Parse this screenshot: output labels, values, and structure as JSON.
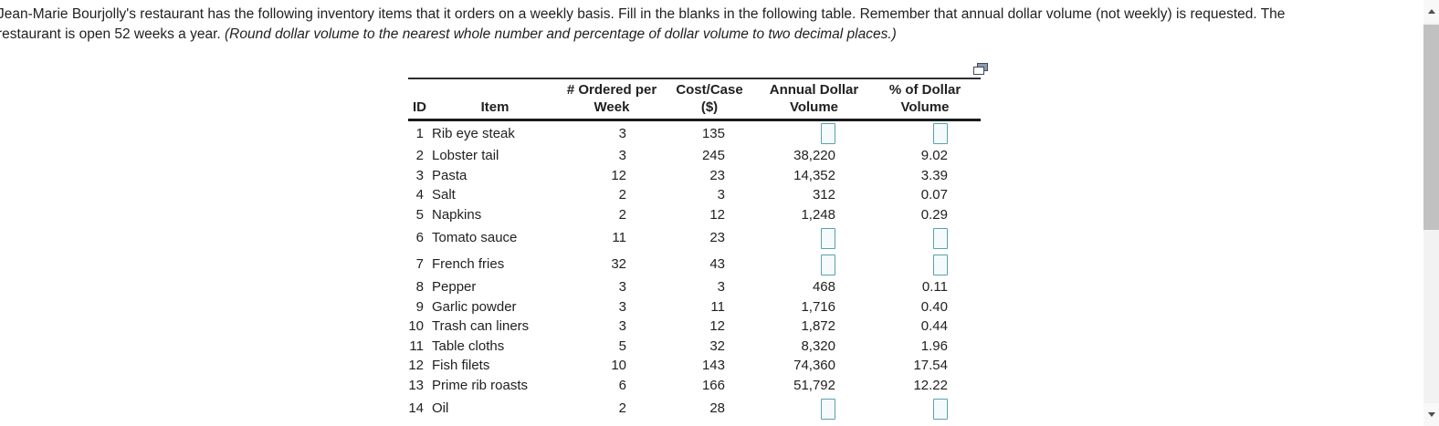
{
  "intro": {
    "line1": "Jean-Marie Bourjolly's restaurant has the following inventory items that it orders on a weekly basis. Fill in the blanks in the following table. Remember that annual dollar volume (not weekly) is requested. The",
    "line2_normal": "restaurant is open 52 weeks a year.",
    "line2_italic": "(Round dollar volume to the nearest whole number and percentage of dollar volume to two decimal places.)"
  },
  "icons": {
    "popout": "popout-window-icon",
    "scroll_up": "triangle-up-icon",
    "scroll_down": "triangle-down-icon"
  },
  "table": {
    "headers": {
      "id": "ID",
      "item": "Item",
      "per_week_l1": "# Ordered per",
      "per_week_l2": "Week",
      "cost_l1": "Cost/Case",
      "cost_l2": "($)",
      "annual_l1": "Annual Dollar",
      "annual_l2": "Volume",
      "pct_l1": "% of Dollar",
      "pct_l2": "Volume"
    },
    "rows": [
      {
        "id": "1",
        "item": "Rib eye steak",
        "per_week": "3",
        "cost_case": "135",
        "annual_volume": "",
        "pct_volume": "",
        "blank": true
      },
      {
        "id": "2",
        "item": "Lobster tail",
        "per_week": "3",
        "cost_case": "245",
        "annual_volume": "38,220",
        "pct_volume": "9.02",
        "blank": false
      },
      {
        "id": "3",
        "item": "Pasta",
        "per_week": "12",
        "cost_case": "23",
        "annual_volume": "14,352",
        "pct_volume": "3.39",
        "blank": false
      },
      {
        "id": "4",
        "item": "Salt",
        "per_week": "2",
        "cost_case": "3",
        "annual_volume": "312",
        "pct_volume": "0.07",
        "blank": false
      },
      {
        "id": "5",
        "item": "Napkins",
        "per_week": "2",
        "cost_case": "12",
        "annual_volume": "1,248",
        "pct_volume": "0.29",
        "blank": false
      },
      {
        "id": "6",
        "item": "Tomato sauce",
        "per_week": "11",
        "cost_case": "23",
        "annual_volume": "",
        "pct_volume": "",
        "blank": true
      },
      {
        "id": "7",
        "item": "French fries",
        "per_week": "32",
        "cost_case": "43",
        "annual_volume": "",
        "pct_volume": "",
        "blank": true
      },
      {
        "id": "8",
        "item": "Pepper",
        "per_week": "3",
        "cost_case": "3",
        "annual_volume": "468",
        "pct_volume": "0.11",
        "blank": false
      },
      {
        "id": "9",
        "item": "Garlic powder",
        "per_week": "3",
        "cost_case": "11",
        "annual_volume": "1,716",
        "pct_volume": "0.40",
        "blank": false
      },
      {
        "id": "10",
        "item": "Trash can liners",
        "per_week": "3",
        "cost_case": "12",
        "annual_volume": "1,872",
        "pct_volume": "0.44",
        "blank": false
      },
      {
        "id": "11",
        "item": "Table cloths",
        "per_week": "5",
        "cost_case": "32",
        "annual_volume": "8,320",
        "pct_volume": "1.96",
        "blank": false
      },
      {
        "id": "12",
        "item": "Fish filets",
        "per_week": "10",
        "cost_case": "143",
        "annual_volume": "74,360",
        "pct_volume": "17.54",
        "blank": false
      },
      {
        "id": "13",
        "item": "Prime rib roasts",
        "per_week": "6",
        "cost_case": "166",
        "annual_volume": "51,792",
        "pct_volume": "12.22",
        "blank": false
      },
      {
        "id": "14",
        "item": "Oil",
        "per_week": "2",
        "cost_case": "28",
        "annual_volume": "",
        "pct_volume": "",
        "blank": true
      }
    ]
  },
  "colors": {
    "text": "#1f1f1f",
    "input_border": "#5ba0af",
    "input_fill": "#f5fbfc",
    "scroll_track": "#f2f2f2",
    "scroll_thumb": "#c1c1c1",
    "rule_dark": "#1a1a1a"
  }
}
